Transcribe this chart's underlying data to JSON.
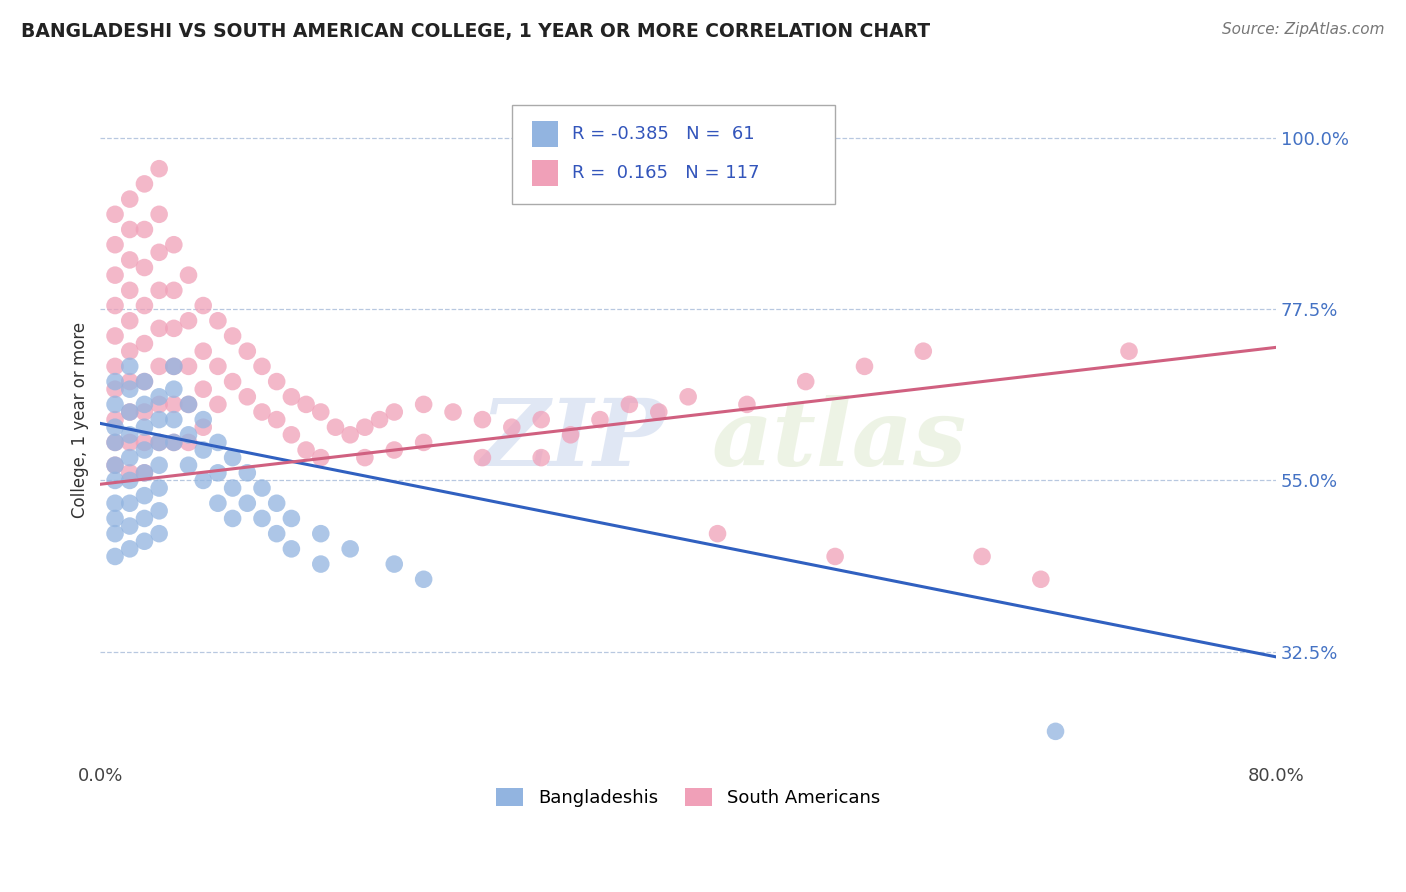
{
  "title": "BANGLADESHI VS SOUTH AMERICAN COLLEGE, 1 YEAR OR MORE CORRELATION CHART",
  "source_text": "Source: ZipAtlas.com",
  "ylabel": "College, 1 year or more",
  "xlim": [
    0.0,
    0.8
  ],
  "ylim": [
    0.18,
    1.08
  ],
  "xtick_labels": [
    "0.0%",
    "80.0%"
  ],
  "xtick_positions": [
    0.0,
    0.8
  ],
  "ytick_labels": [
    "32.5%",
    "55.0%",
    "77.5%",
    "100.0%"
  ],
  "ytick_positions": [
    0.325,
    0.55,
    0.775,
    1.0
  ],
  "watermark_zip": "ZIP",
  "watermark_atlas": "atlas",
  "legend_r1": "-0.385",
  "legend_n1": "61",
  "legend_r2": "0.165",
  "legend_n2": "117",
  "blue_color": "#92b4e0",
  "pink_color": "#f0a0b8",
  "blue_line_color": "#3060c0",
  "pink_line_color": "#d06080",
  "background_color": "#ffffff",
  "grid_color": "#b8c8e0",
  "blue_trendline": [
    [
      0.0,
      0.625
    ],
    [
      0.8,
      0.318
    ]
  ],
  "pink_trendline": [
    [
      0.0,
      0.545
    ],
    [
      0.8,
      0.725
    ]
  ],
  "blue_scatter": [
    [
      0.01,
      0.68
    ],
    [
      0.01,
      0.65
    ],
    [
      0.01,
      0.62
    ],
    [
      0.01,
      0.6
    ],
    [
      0.01,
      0.57
    ],
    [
      0.01,
      0.55
    ],
    [
      0.01,
      0.52
    ],
    [
      0.01,
      0.5
    ],
    [
      0.01,
      0.48
    ],
    [
      0.01,
      0.45
    ],
    [
      0.02,
      0.7
    ],
    [
      0.02,
      0.67
    ],
    [
      0.02,
      0.64
    ],
    [
      0.02,
      0.61
    ],
    [
      0.02,
      0.58
    ],
    [
      0.02,
      0.55
    ],
    [
      0.02,
      0.52
    ],
    [
      0.02,
      0.49
    ],
    [
      0.02,
      0.46
    ],
    [
      0.03,
      0.68
    ],
    [
      0.03,
      0.65
    ],
    [
      0.03,
      0.62
    ],
    [
      0.03,
      0.59
    ],
    [
      0.03,
      0.56
    ],
    [
      0.03,
      0.53
    ],
    [
      0.03,
      0.5
    ],
    [
      0.03,
      0.47
    ],
    [
      0.04,
      0.66
    ],
    [
      0.04,
      0.63
    ],
    [
      0.04,
      0.6
    ],
    [
      0.04,
      0.57
    ],
    [
      0.04,
      0.54
    ],
    [
      0.04,
      0.51
    ],
    [
      0.04,
      0.48
    ],
    [
      0.05,
      0.7
    ],
    [
      0.05,
      0.67
    ],
    [
      0.05,
      0.63
    ],
    [
      0.05,
      0.6
    ],
    [
      0.06,
      0.65
    ],
    [
      0.06,
      0.61
    ],
    [
      0.06,
      0.57
    ],
    [
      0.07,
      0.63
    ],
    [
      0.07,
      0.59
    ],
    [
      0.07,
      0.55
    ],
    [
      0.08,
      0.6
    ],
    [
      0.08,
      0.56
    ],
    [
      0.08,
      0.52
    ],
    [
      0.09,
      0.58
    ],
    [
      0.09,
      0.54
    ],
    [
      0.09,
      0.5
    ],
    [
      0.1,
      0.56
    ],
    [
      0.1,
      0.52
    ],
    [
      0.11,
      0.54
    ],
    [
      0.11,
      0.5
    ],
    [
      0.12,
      0.52
    ],
    [
      0.12,
      0.48
    ],
    [
      0.13,
      0.5
    ],
    [
      0.13,
      0.46
    ],
    [
      0.15,
      0.48
    ],
    [
      0.15,
      0.44
    ],
    [
      0.17,
      0.46
    ],
    [
      0.2,
      0.44
    ],
    [
      0.22,
      0.42
    ],
    [
      0.65,
      0.22
    ]
  ],
  "pink_scatter": [
    [
      0.01,
      0.9
    ],
    [
      0.01,
      0.86
    ],
    [
      0.01,
      0.82
    ],
    [
      0.01,
      0.78
    ],
    [
      0.01,
      0.74
    ],
    [
      0.01,
      0.7
    ],
    [
      0.01,
      0.67
    ],
    [
      0.01,
      0.63
    ],
    [
      0.01,
      0.6
    ],
    [
      0.01,
      0.57
    ],
    [
      0.02,
      0.92
    ],
    [
      0.02,
      0.88
    ],
    [
      0.02,
      0.84
    ],
    [
      0.02,
      0.8
    ],
    [
      0.02,
      0.76
    ],
    [
      0.02,
      0.72
    ],
    [
      0.02,
      0.68
    ],
    [
      0.02,
      0.64
    ],
    [
      0.02,
      0.6
    ],
    [
      0.02,
      0.56
    ],
    [
      0.03,
      0.94
    ],
    [
      0.03,
      0.88
    ],
    [
      0.03,
      0.83
    ],
    [
      0.03,
      0.78
    ],
    [
      0.03,
      0.73
    ],
    [
      0.03,
      0.68
    ],
    [
      0.03,
      0.64
    ],
    [
      0.03,
      0.6
    ],
    [
      0.03,
      0.56
    ],
    [
      0.04,
      0.96
    ],
    [
      0.04,
      0.9
    ],
    [
      0.04,
      0.85
    ],
    [
      0.04,
      0.8
    ],
    [
      0.04,
      0.75
    ],
    [
      0.04,
      0.7
    ],
    [
      0.04,
      0.65
    ],
    [
      0.04,
      0.6
    ],
    [
      0.05,
      0.86
    ],
    [
      0.05,
      0.8
    ],
    [
      0.05,
      0.75
    ],
    [
      0.05,
      0.7
    ],
    [
      0.05,
      0.65
    ],
    [
      0.05,
      0.6
    ],
    [
      0.06,
      0.82
    ],
    [
      0.06,
      0.76
    ],
    [
      0.06,
      0.7
    ],
    [
      0.06,
      0.65
    ],
    [
      0.06,
      0.6
    ],
    [
      0.07,
      0.78
    ],
    [
      0.07,
      0.72
    ],
    [
      0.07,
      0.67
    ],
    [
      0.07,
      0.62
    ],
    [
      0.08,
      0.76
    ],
    [
      0.08,
      0.7
    ],
    [
      0.08,
      0.65
    ],
    [
      0.09,
      0.74
    ],
    [
      0.09,
      0.68
    ],
    [
      0.1,
      0.72
    ],
    [
      0.1,
      0.66
    ],
    [
      0.11,
      0.7
    ],
    [
      0.11,
      0.64
    ],
    [
      0.12,
      0.68
    ],
    [
      0.12,
      0.63
    ],
    [
      0.13,
      0.66
    ],
    [
      0.13,
      0.61
    ],
    [
      0.14,
      0.65
    ],
    [
      0.14,
      0.59
    ],
    [
      0.15,
      0.64
    ],
    [
      0.15,
      0.58
    ],
    [
      0.16,
      0.62
    ],
    [
      0.17,
      0.61
    ],
    [
      0.18,
      0.62
    ],
    [
      0.18,
      0.58
    ],
    [
      0.19,
      0.63
    ],
    [
      0.2,
      0.64
    ],
    [
      0.2,
      0.59
    ],
    [
      0.22,
      0.65
    ],
    [
      0.22,
      0.6
    ],
    [
      0.24,
      0.64
    ],
    [
      0.26,
      0.63
    ],
    [
      0.26,
      0.58
    ],
    [
      0.28,
      0.62
    ],
    [
      0.3,
      0.63
    ],
    [
      0.3,
      0.58
    ],
    [
      0.32,
      0.61
    ],
    [
      0.34,
      0.63
    ],
    [
      0.36,
      0.65
    ],
    [
      0.38,
      0.64
    ],
    [
      0.4,
      0.66
    ],
    [
      0.42,
      0.48
    ],
    [
      0.44,
      0.65
    ],
    [
      0.48,
      0.68
    ],
    [
      0.5,
      0.45
    ],
    [
      0.52,
      0.7
    ],
    [
      0.56,
      0.72
    ],
    [
      0.6,
      0.45
    ],
    [
      0.64,
      0.42
    ],
    [
      0.7,
      0.72
    ]
  ]
}
